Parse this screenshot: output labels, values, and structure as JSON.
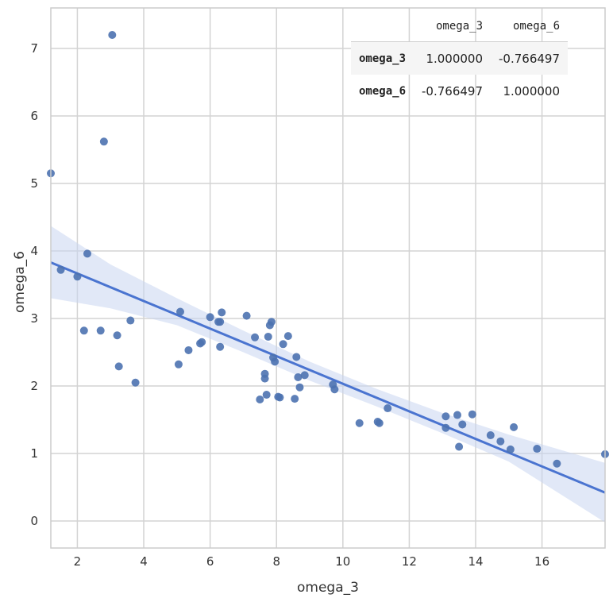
{
  "chart_data": {
    "type": "scatter",
    "xlabel": "omega_3",
    "ylabel": "omega_6",
    "xlim": [
      1.2,
      17.9
    ],
    "ylim": [
      -0.4,
      7.6
    ],
    "xticks": [
      2,
      4,
      6,
      8,
      10,
      12,
      14,
      16
    ],
    "yticks": [
      0,
      1,
      2,
      3,
      4,
      5,
      6,
      7
    ],
    "grid": true,
    "colors": {
      "points": "#4c72b0",
      "regression_line": "#4a74d0",
      "confidence_band": "#c9d6f0",
      "grid": "#d3d3d3",
      "axes": "#cccccc"
    },
    "points": {
      "x": [
        1.2,
        1.5,
        2.0,
        2.2,
        2.3,
        2.7,
        2.8,
        3.05,
        3.2,
        3.25,
        3.6,
        3.75,
        5.05,
        5.1,
        5.35,
        5.7,
        5.75,
        6.0,
        6.25,
        6.3,
        6.3,
        6.35,
        7.1,
        7.35,
        7.5,
        7.65,
        7.65,
        7.7,
        7.75,
        7.8,
        7.85,
        7.9,
        7.95,
        8.05,
        8.1,
        8.2,
        8.35,
        8.55,
        8.6,
        8.65,
        8.7,
        8.85,
        9.7,
        9.75,
        10.5,
        11.05,
        11.1,
        11.35,
        13.1,
        13.1,
        13.45,
        13.5,
        13.6,
        13.9,
        14.45,
        14.75,
        15.05,
        15.15,
        15.85,
        16.45,
        17.9
      ],
      "y": [
        5.15,
        3.72,
        3.62,
        2.82,
        3.96,
        2.82,
        5.62,
        7.2,
        2.75,
        2.29,
        2.97,
        2.05,
        2.32,
        3.1,
        2.53,
        2.63,
        2.65,
        3.02,
        2.95,
        2.95,
        2.58,
        3.09,
        3.04,
        2.72,
        1.8,
        2.11,
        2.18,
        1.87,
        2.73,
        2.9,
        2.95,
        2.42,
        2.36,
        1.84,
        1.83,
        2.62,
        2.74,
        1.81,
        2.43,
        2.13,
        1.98,
        2.16,
        2.02,
        1.95,
        1.45,
        1.47,
        1.45,
        1.67,
        1.55,
        1.38,
        1.57,
        1.1,
        1.43,
        1.58,
        1.27,
        1.18,
        1.06,
        1.39,
        1.07,
        0.85,
        0.99
      ]
    },
    "regression_line": {
      "x": [
        1.2,
        17.9
      ],
      "y": [
        3.83,
        0.42
      ]
    },
    "confidence_band": {
      "x": [
        1.2,
        3.0,
        5.0,
        7.0,
        9.0,
        11.0,
        13.0,
        15.0,
        17.9
      ],
      "lower": [
        3.3,
        3.15,
        2.9,
        2.5,
        2.08,
        1.7,
        1.3,
        0.88,
        -0.02
      ],
      "upper": [
        4.37,
        3.8,
        3.3,
        2.82,
        2.36,
        1.96,
        1.6,
        1.28,
        0.86
      ]
    },
    "correlation_table": {
      "columns": [
        "omega_3",
        "omega_6"
      ],
      "rows": [
        {
          "label": "omega_3",
          "values": [
            "1.000000",
            "-0.766497"
          ]
        },
        {
          "label": "omega_6",
          "values": [
            "-0.766497",
            "1.000000"
          ]
        }
      ]
    }
  }
}
